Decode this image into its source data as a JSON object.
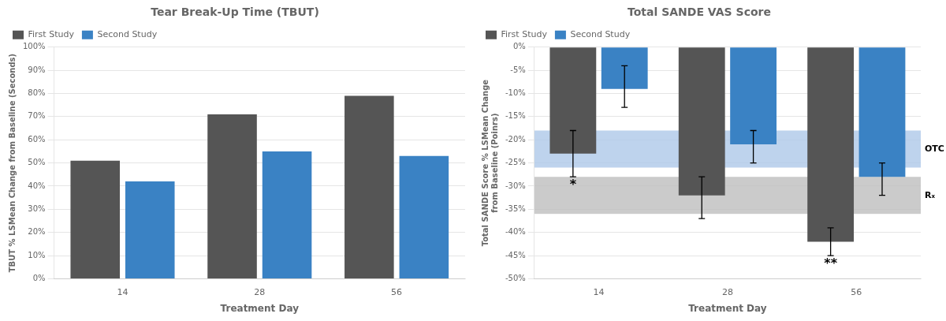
{
  "chart_data": [
    {
      "type": "bar",
      "title": "Tear Break-Up Time (TBUT)",
      "xlabel": "Treatment Day",
      "ylabel": "TBUT % LSMean Change from Baseline (Seconds)",
      "categories": [
        "14",
        "28",
        "56"
      ],
      "series": [
        {
          "name": "First Study",
          "color": "#555555",
          "values": [
            51,
            71,
            79
          ]
        },
        {
          "name": "Second Study",
          "color": "#3a82c4",
          "values": [
            42,
            55,
            53
          ]
        }
      ],
      "ylim": [
        0,
        100
      ],
      "yticks": [
        {
          "value": 0,
          "label": "0%"
        },
        {
          "value": 10,
          "label": "10%"
        },
        {
          "value": 20,
          "label": "20%"
        },
        {
          "value": 30,
          "label": "30%"
        },
        {
          "value": 40,
          "label": "40%"
        },
        {
          "value": 50,
          "label": "50%"
        },
        {
          "value": 60,
          "label": "60%"
        },
        {
          "value": 70,
          "label": "70%"
        },
        {
          "value": 80,
          "label": "80%"
        },
        {
          "value": 90,
          "label": "90%"
        },
        {
          "value": 100,
          "label": "100%"
        }
      ],
      "grid": true,
      "legend": "upper left"
    },
    {
      "type": "bar",
      "title": "Total SANDE VAS Score",
      "xlabel": "Treatment Day",
      "ylabel": "Total SANDE Score % LSMean Change\nfrom Baseline (Poinrs)",
      "categories": [
        "14",
        "28",
        "56"
      ],
      "series": [
        {
          "name": "First Study",
          "color": "#555555",
          "values": [
            -23,
            -32,
            -42
          ],
          "error_minus": [
            5,
            5,
            3
          ],
          "error_plus": [
            5,
            4,
            3
          ]
        },
        {
          "name": "Second Study",
          "color": "#3a82c4",
          "values": [
            -9,
            -21,
            -28
          ],
          "error_minus": [
            4,
            4,
            4
          ],
          "error_plus": [
            5,
            3,
            3
          ]
        }
      ],
      "ylim": [
        -50,
        0
      ],
      "yticks": [
        {
          "value": 0,
          "label": "0%"
        },
        {
          "value": -5,
          "label": "-5%"
        },
        {
          "value": -10,
          "label": "-10%"
        },
        {
          "value": -15,
          "label": "-15%"
        },
        {
          "value": -20,
          "label": "-20%"
        },
        {
          "value": -25,
          "label": "-25%"
        },
        {
          "value": -30,
          "label": "-30%"
        },
        {
          "value": -35,
          "label": "-35%"
        },
        {
          "value": -40,
          "label": "-40%"
        },
        {
          "value": -45,
          "label": "-45%"
        },
        {
          "value": -50,
          "label": "-50%"
        }
      ],
      "bands": [
        {
          "label": "OTC",
          "from": -26,
          "to": -18,
          "color": "#aec8e8"
        },
        {
          "label": "Rₓ",
          "from": -36,
          "to": -28,
          "color": "#bebebe"
        }
      ],
      "annotations": [
        {
          "text": "*",
          "category": "14",
          "series": "First Study"
        },
        {
          "text": "**",
          "category": "56",
          "series": "First Study"
        }
      ],
      "grid": true,
      "legend": "upper left"
    }
  ]
}
